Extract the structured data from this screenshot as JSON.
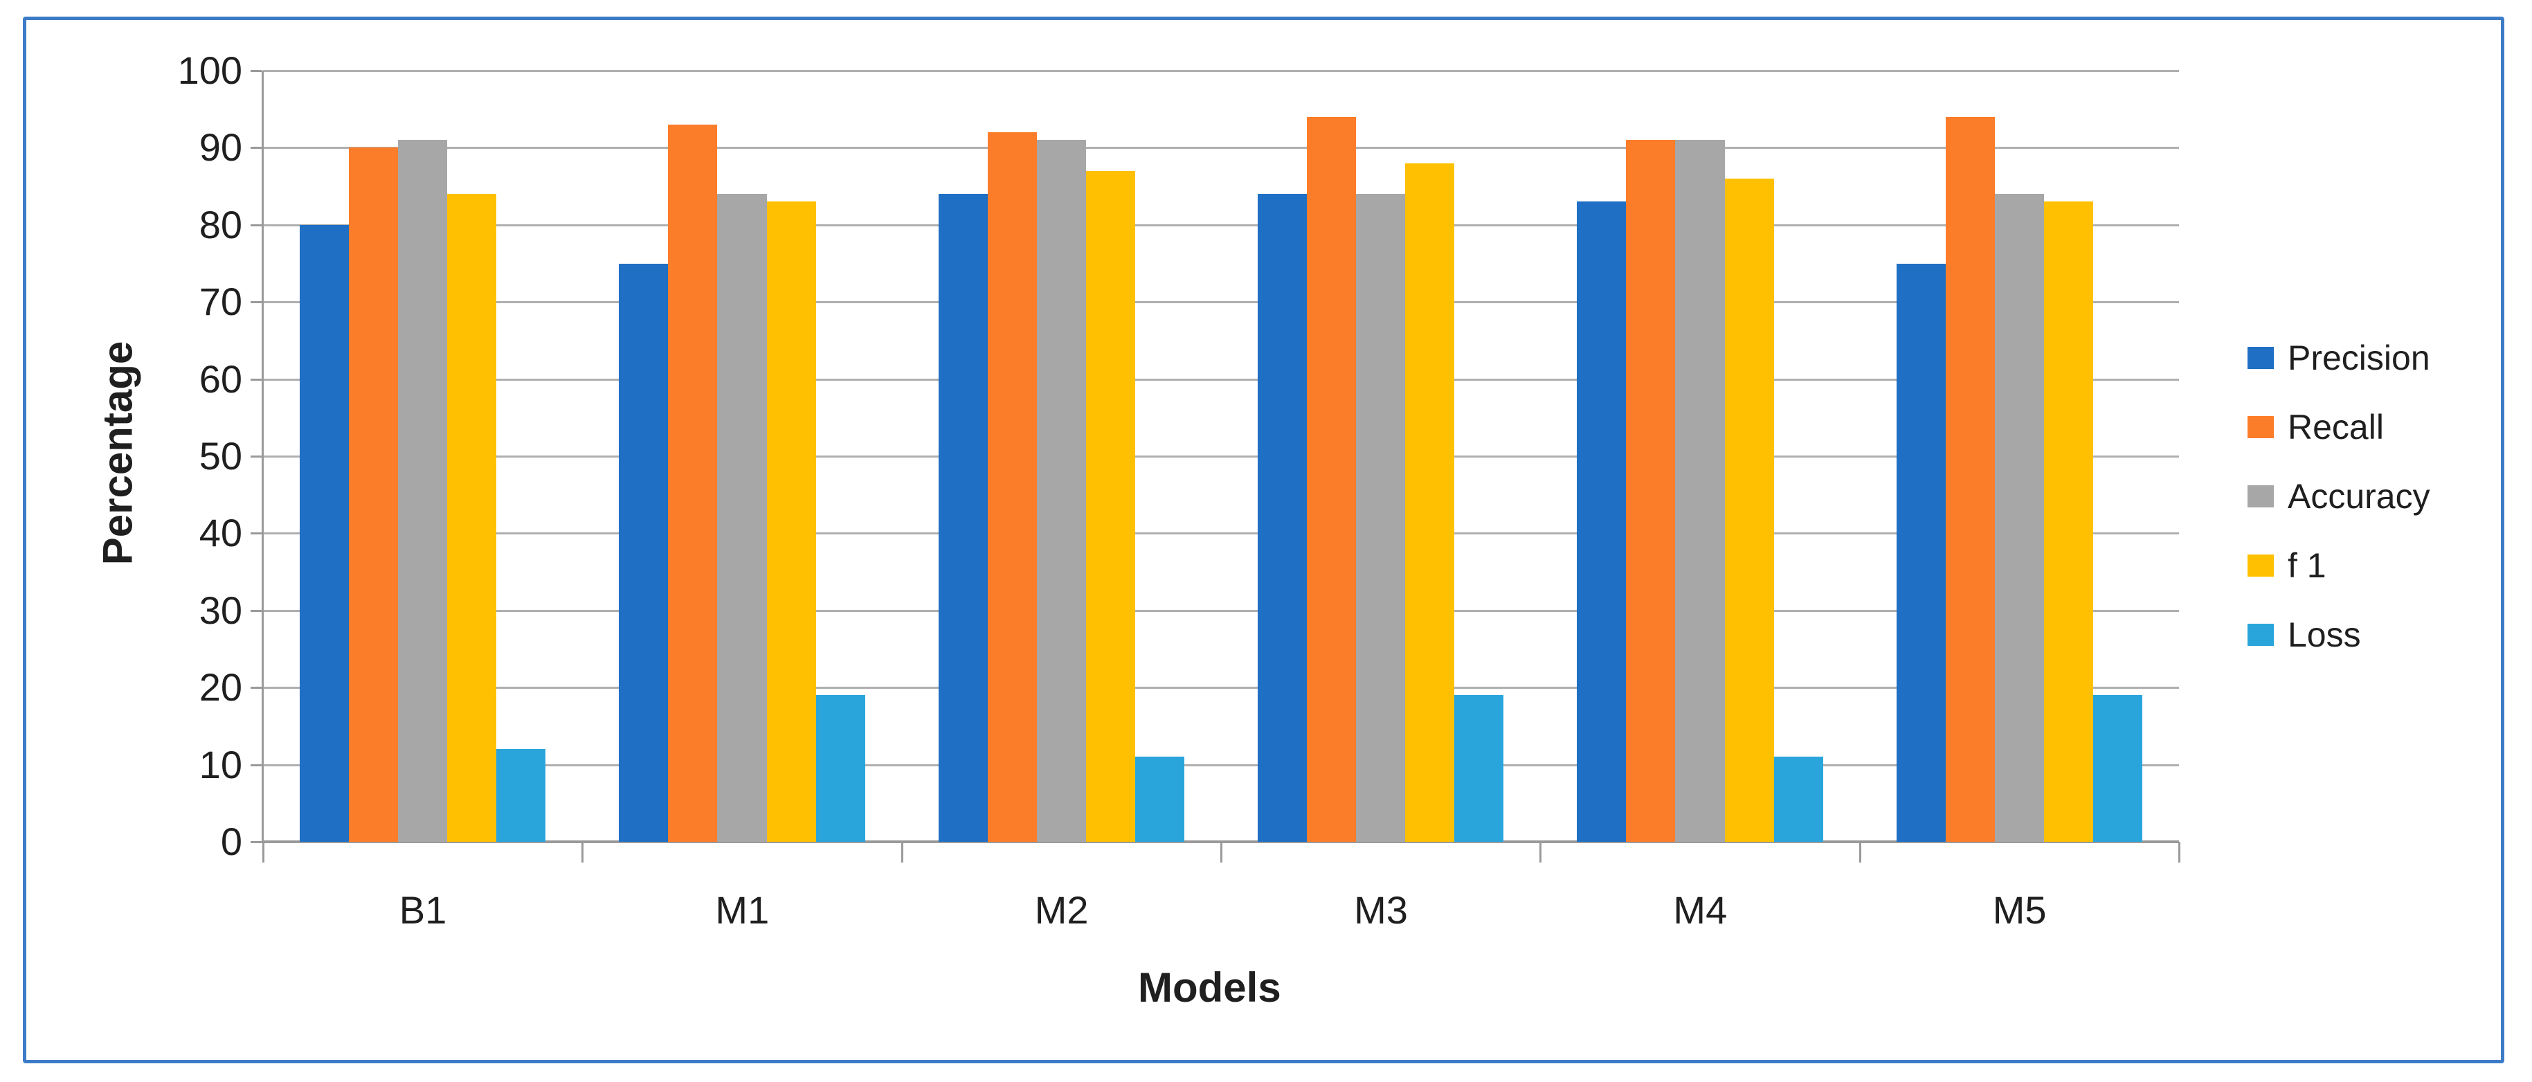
{
  "frame": {
    "border_color": "#3C7BC7",
    "background": "#FFFFFF"
  },
  "chart_data": {
    "type": "bar",
    "title": "",
    "categories": [
      "B1",
      "M1",
      "M2",
      "M3",
      "M4",
      "M5"
    ],
    "series": [
      {
        "name": "Precision",
        "color": "#1F6FC4",
        "values": [
          80,
          75,
          84,
          84,
          83,
          75
        ]
      },
      {
        "name": "Recall",
        "color": "#FC7D29",
        "values": [
          90,
          93,
          92,
          94,
          91,
          94
        ]
      },
      {
        "name": "Accuracy",
        "color": "#A7A7A7",
        "values": [
          91,
          84,
          91,
          84,
          91,
          84
        ]
      },
      {
        "name": "f 1",
        "color": "#FFC001",
        "values": [
          84,
          83,
          87,
          88,
          86,
          83
        ]
      },
      {
        "name": "Loss",
        "color": "#29A5DC",
        "values": [
          12,
          19,
          11,
          19,
          11,
          19
        ]
      }
    ],
    "xlabel": "Models",
    "ylabel": "Percentage",
    "ylim": [
      0,
      100
    ],
    "ytick_step": 10,
    "y_tick_labels": [
      "0",
      "10",
      "20",
      "30",
      "40",
      "50",
      "60",
      "70",
      "80",
      "90",
      "100"
    ],
    "grid": "horizontal",
    "gridline_color": "#AFAFAF",
    "axis_color": "#9A9A9A",
    "legend_position": "right",
    "legend_labels": [
      "Precision",
      "Recall",
      "Accuracy",
      "f 1",
      "Loss"
    ]
  }
}
